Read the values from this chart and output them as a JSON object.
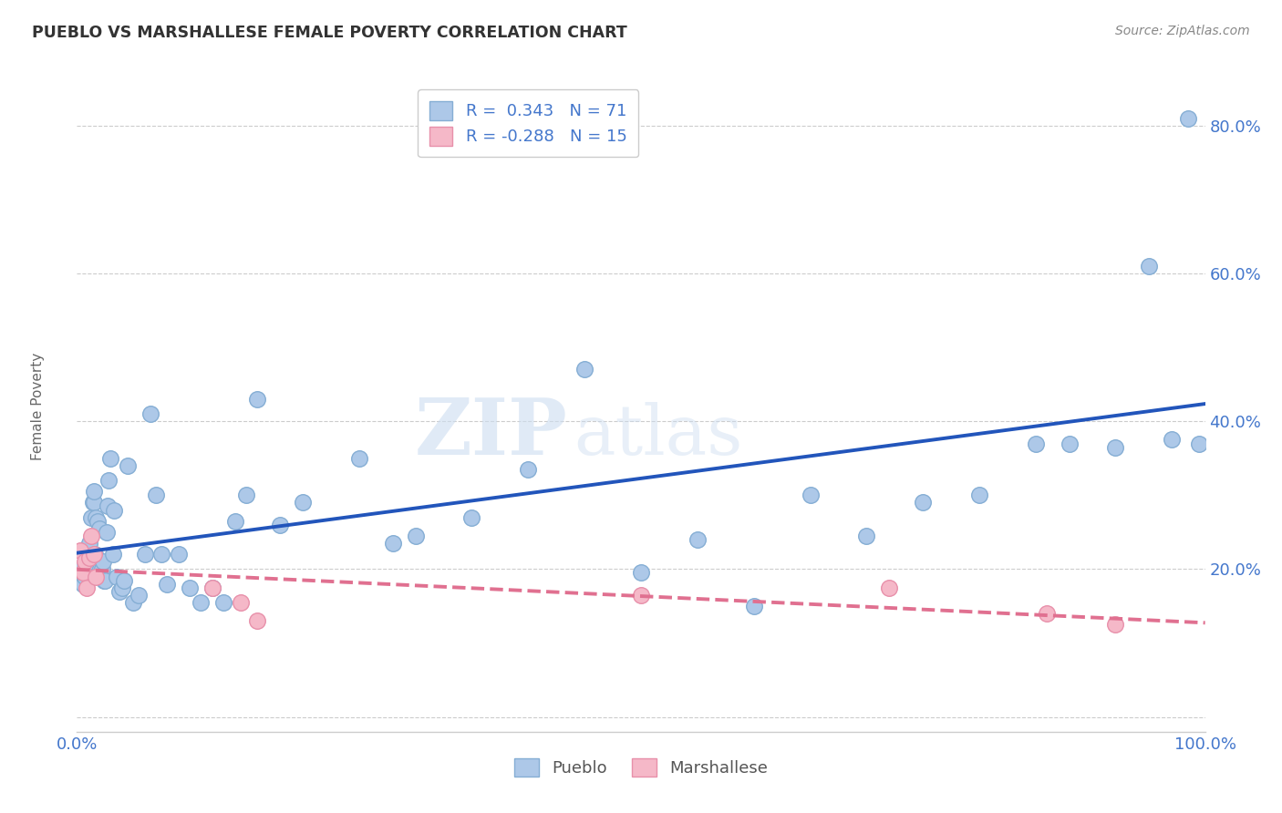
{
  "title": "PUEBLO VS MARSHALLESE FEMALE POVERTY CORRELATION CHART",
  "source": "Source: ZipAtlas.com",
  "ylabel": "Female Poverty",
  "xlim": [
    0.0,
    1.0
  ],
  "ylim": [
    -0.02,
    0.86
  ],
  "x_ticks": [
    0.0,
    0.25,
    0.5,
    0.75,
    1.0
  ],
  "x_tick_labels": [
    "0.0%",
    "",
    "",
    "",
    "100.0%"
  ],
  "y_ticks": [
    0.0,
    0.2,
    0.4,
    0.6,
    0.8
  ],
  "y_tick_labels": [
    "",
    "20.0%",
    "40.0%",
    "60.0%",
    "80.0%"
  ],
  "pueblo_color": "#adc8e8",
  "pueblo_edge_color": "#85aed4",
  "marshallese_color": "#f5b8c8",
  "marshallese_edge_color": "#e890aa",
  "trend_pueblo_color": "#2255bb",
  "trend_marshallese_color": "#e07090",
  "pueblo_R": 0.343,
  "pueblo_N": 71,
  "marshallese_R": -0.288,
  "marshallese_N": 15,
  "watermark_zip": "ZIP",
  "watermark_atlas": "atlas",
  "pueblo_x": [
    0.003,
    0.005,
    0.007,
    0.008,
    0.009,
    0.01,
    0.01,
    0.011,
    0.012,
    0.013,
    0.014,
    0.015,
    0.015,
    0.016,
    0.017,
    0.018,
    0.019,
    0.02,
    0.021,
    0.022,
    0.023,
    0.024,
    0.025,
    0.026,
    0.027,
    0.028,
    0.03,
    0.032,
    0.033,
    0.035,
    0.038,
    0.04,
    0.042,
    0.045,
    0.05,
    0.055,
    0.06,
    0.065,
    0.07,
    0.075,
    0.08,
    0.09,
    0.1,
    0.11,
    0.12,
    0.13,
    0.14,
    0.15,
    0.16,
    0.18,
    0.2,
    0.25,
    0.28,
    0.3,
    0.35,
    0.4,
    0.45,
    0.5,
    0.55,
    0.6,
    0.65,
    0.7,
    0.75,
    0.8,
    0.85,
    0.88,
    0.92,
    0.95,
    0.97,
    0.985,
    0.995
  ],
  "pueblo_y": [
    0.2,
    0.18,
    0.19,
    0.21,
    0.22,
    0.2,
    0.22,
    0.235,
    0.19,
    0.27,
    0.29,
    0.29,
    0.305,
    0.22,
    0.27,
    0.265,
    0.19,
    0.255,
    0.2,
    0.2,
    0.21,
    0.185,
    0.185,
    0.25,
    0.285,
    0.32,
    0.35,
    0.22,
    0.28,
    0.19,
    0.17,
    0.175,
    0.185,
    0.34,
    0.155,
    0.165,
    0.22,
    0.41,
    0.3,
    0.22,
    0.18,
    0.22,
    0.175,
    0.155,
    0.175,
    0.155,
    0.265,
    0.3,
    0.43,
    0.26,
    0.29,
    0.35,
    0.235,
    0.245,
    0.27,
    0.335,
    0.47,
    0.195,
    0.24,
    0.15,
    0.3,
    0.245,
    0.29,
    0.3,
    0.37,
    0.37,
    0.365,
    0.61,
    0.375,
    0.81,
    0.37
  ],
  "marshallese_x": [
    0.003,
    0.005,
    0.007,
    0.009,
    0.011,
    0.013,
    0.015,
    0.017,
    0.12,
    0.145,
    0.16,
    0.5,
    0.72,
    0.86,
    0.92
  ],
  "marshallese_y": [
    0.225,
    0.195,
    0.21,
    0.175,
    0.215,
    0.245,
    0.22,
    0.19,
    0.175,
    0.155,
    0.13,
    0.165,
    0.175,
    0.14,
    0.125
  ],
  "background_color": "#ffffff",
  "grid_color": "#cccccc",
  "tick_color": "#4477cc",
  "title_color": "#333333",
  "source_color": "#888888",
  "ylabel_color": "#666666"
}
